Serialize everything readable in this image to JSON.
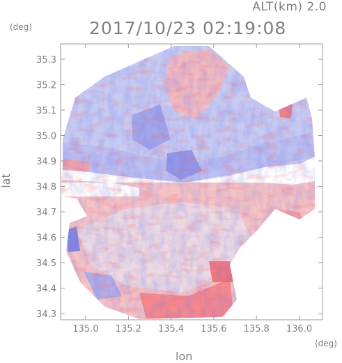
{
  "header": {
    "altitude_label": "ALT(km) 2.0",
    "datetime": "2017/10/23 02:19:08"
  },
  "axes": {
    "y_unit": "(deg)",
    "x_unit": "(deg)",
    "y_title": "lat",
    "x_title": "lon",
    "x_ticks": [
      "135.0",
      "135.2",
      "135.4",
      "135.6",
      "135.8",
      "136.0"
    ],
    "y_ticks": [
      "35.3",
      "35.2",
      "35.1",
      "35.0",
      "34.9",
      "34.8",
      "34.7",
      "34.6",
      "34.5",
      "34.4",
      "34.3"
    ]
  },
  "colors": {
    "positive": "#f46a6e",
    "negative": "#6a72e6",
    "frame": "#9a9a9a",
    "text": "#7f7f7f"
  }
}
